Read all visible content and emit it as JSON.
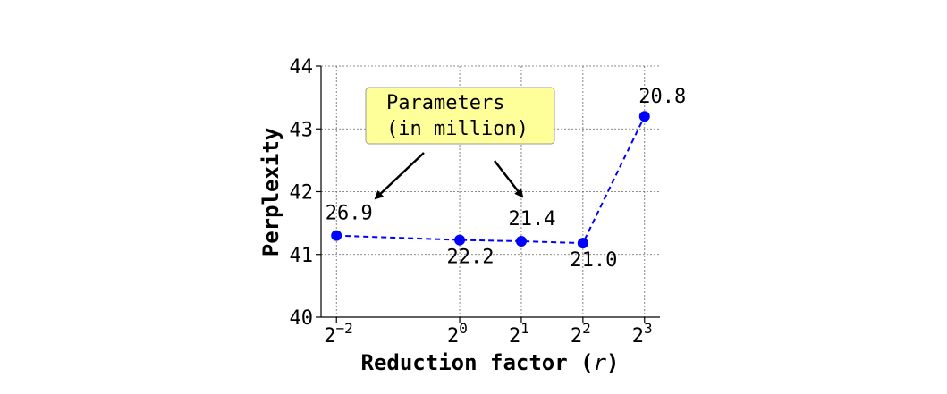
{
  "chart_data": {
    "type": "line",
    "x_exponents": [
      -2,
      0,
      1,
      2,
      3
    ],
    "x_tick_base": "2",
    "x_tick_labels": [
      "-2",
      "0",
      "1",
      "2",
      "3"
    ],
    "y": [
      41.3,
      41.23,
      41.21,
      41.18,
      43.2
    ],
    "data_labels": [
      "26.9",
      "22.2",
      "21.4",
      "21.0",
      "20.8"
    ],
    "xlabel": "Reduction factor (",
    "xlabel_var": "r",
    "xlabel_end": ")",
    "ylabel": "Perplexity",
    "ylim": [
      40,
      44
    ],
    "y_ticks": [
      "40",
      "41",
      "42",
      "43",
      "44"
    ],
    "grid": true,
    "line_color": "#0000ff",
    "line_style": "dashed",
    "annotation": {
      "line1": "Parameters",
      "line2": "(in million)",
      "box_color": "#ffff99"
    }
  }
}
